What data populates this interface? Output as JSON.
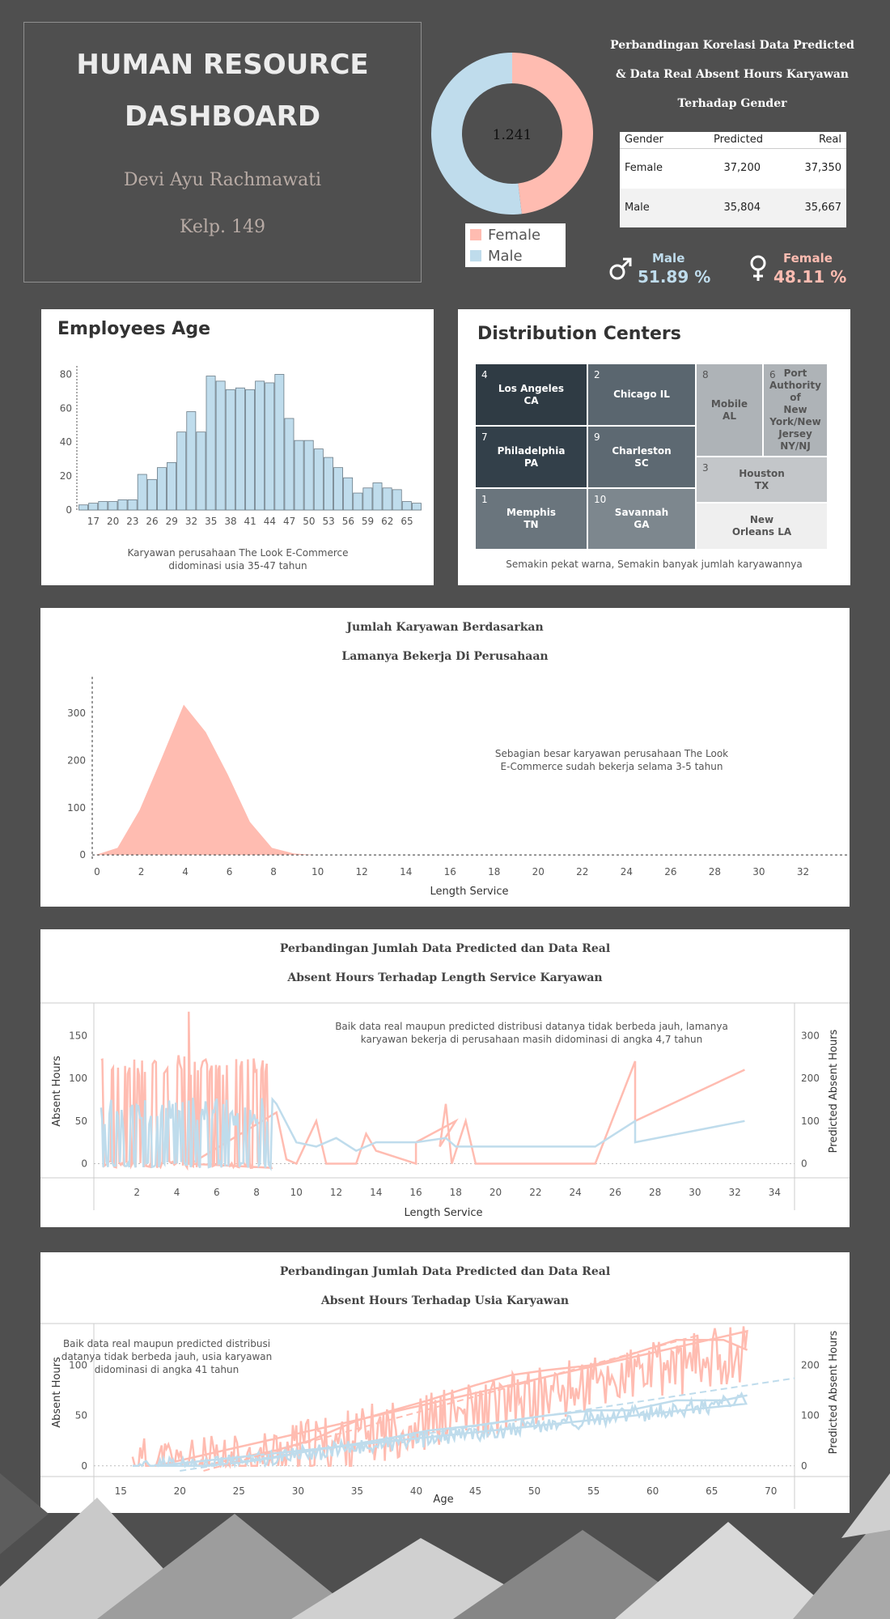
{
  "colors": {
    "background": "#4f4f4f",
    "female": "#ffbcb1",
    "male": "#bfdcec",
    "dark_tile": "#2f3b44"
  },
  "header": {
    "title_line1": "HUMAN RESOURCE",
    "title_line2": "DASHBOARD",
    "author": "Devi Ayu Rachmawati",
    "group": "Kelp. 149"
  },
  "donut": {
    "center_label": "1.241",
    "legend": [
      "Female",
      "Male"
    ]
  },
  "comparison": {
    "title_lines": [
      "Perbandingan Korelasi Data Predicted",
      "& Data Real Absent Hours Karyawan",
      "Terhadap Gender"
    ],
    "columns": [
      "Gender",
      "Predicted",
      "Real"
    ],
    "rows": [
      [
        "Female",
        "37,200",
        "37,350"
      ],
      [
        "Male",
        "35,804",
        "35,667"
      ]
    ]
  },
  "gender_stats": {
    "male_label": "Male",
    "male_pct": "51.89 %",
    "male_icon": "male-symbol-icon",
    "female_label": "Female",
    "female_pct": "48.11 %",
    "female_icon": "female-symbol-icon"
  },
  "chart_data": [
    {
      "id": "gender_donut",
      "type": "pie",
      "labels": [
        "Female",
        "Male"
      ],
      "values": [
        48.11,
        51.89
      ],
      "center_label": "1.241"
    },
    {
      "id": "employees_age",
      "type": "bar",
      "title": "Employees Age",
      "x_tick_labels": [
        "17",
        "20",
        "23",
        "26",
        "29",
        "32",
        "35",
        "38",
        "41",
        "44",
        "47",
        "50",
        "53",
        "56",
        "59",
        "62",
        "65"
      ],
      "x_start": 16,
      "x_step": 1.5,
      "values": [
        3,
        4,
        5,
        5,
        6,
        6,
        21,
        18,
        25,
        28,
        46,
        58,
        46,
        79,
        76,
        71,
        72,
        71,
        76,
        75,
        80,
        54,
        41,
        41,
        36,
        31,
        25,
        19,
        10,
        13,
        16,
        13,
        12,
        5,
        4
      ],
      "y_ticks": [
        "0",
        "20",
        "40",
        "60",
        "80"
      ],
      "ylim": [
        0,
        85
      ],
      "note_lines": [
        "Karyawan perusahaan The Look E-Commerce",
        "didominasi usia 35-47 tahun"
      ]
    },
    {
      "id": "distribution_centers",
      "type": "heatmap",
      "title": "Distribution Centers",
      "tiles": [
        {
          "rank": "4",
          "lines": [
            "Los Angeles",
            "CA"
          ]
        },
        {
          "rank": "2",
          "lines": [
            "Chicago IL"
          ]
        },
        {
          "rank": "8",
          "lines": [
            "Mobile",
            "AL"
          ]
        },
        {
          "rank": "6",
          "lines": [
            "Port",
            "Authority of",
            "New",
            "York/New",
            "Jersey",
            "NY/NJ"
          ]
        },
        {
          "rank": "7",
          "lines": [
            "Philadelphia",
            "PA"
          ]
        },
        {
          "rank": "9",
          "lines": [
            "Charleston",
            "SC"
          ]
        },
        {
          "rank": "3",
          "lines": [
            "Houston",
            "TX"
          ]
        },
        {
          "rank": "1",
          "lines": [
            "Memphis",
            "TN"
          ]
        },
        {
          "rank": "10",
          "lines": [
            "Savannah",
            "GA"
          ]
        },
        {
          "rank": "",
          "lines": [
            "New",
            "Orleans LA"
          ]
        }
      ],
      "note": "Semakin pekat warna, Semakin banyak jumlah karyawannya"
    },
    {
      "id": "length_service_area",
      "type": "area",
      "title_lines": [
        "Jumlah Karyawan Berdasarkan",
        "Lamanya Bekerja Di Perusahaan"
      ],
      "xlabel": "Length Service",
      "x": [
        0,
        1,
        2,
        3,
        4,
        5,
        6,
        7,
        8,
        9,
        10
      ],
      "values": [
        0,
        15,
        95,
        205,
        318,
        260,
        170,
        70,
        15,
        3,
        0
      ],
      "x_ticks": [
        "0",
        "2",
        "4",
        "6",
        "8",
        "10",
        "12",
        "14",
        "16",
        "18",
        "20",
        "22",
        "24",
        "26",
        "28",
        "30",
        "32"
      ],
      "y_ticks": [
        "0",
        "100",
        "200",
        "300"
      ],
      "xlim": [
        0,
        34
      ],
      "ylim": [
        -10,
        360
      ],
      "note_lines": [
        "Sebagian besar karyawan perusahaan The Look",
        "E-Commerce sudah bekerja selama 3-5 tahun"
      ]
    },
    {
      "id": "absent_vs_length_service",
      "type": "line",
      "title_lines": [
        "Perbandingan Jumlah Data Predicted dan Data Real",
        "Absent Hours Terhadap Length Service Karyawan"
      ],
      "xlabel": "Length Service",
      "ylabel": "Absent Hours",
      "y2label": "Predicted Absent Hours",
      "x_ticks": [
        "2",
        "4",
        "6",
        "8",
        "10",
        "12",
        "14",
        "16",
        "18",
        "20",
        "22",
        "24",
        "26",
        "28",
        "30",
        "32",
        "34"
      ],
      "y_ticks": [
        "0",
        "50",
        "100",
        "150"
      ],
      "y2_ticks": [
        "0",
        "100",
        "200",
        "300"
      ],
      "xlim": [
        0,
        35
      ],
      "ylim": [
        -10,
        175
      ],
      "note_lines": [
        "Baik data real maupun predicted distribusi datanya tidak berbeda jauh, lamanya",
        "karyawan bekerja di perusahaan masih didominasi di angka 4,7 tahun"
      ],
      "series": [
        {
          "name": "Absent Hours",
          "x": [
            9,
            9.5,
            10,
            11,
            11.5,
            12,
            13,
            13.5,
            14,
            16,
            16,
            18,
            17.2,
            17.5,
            17.8,
            18.5,
            19,
            20,
            25,
            27,
            27,
            32.5
          ],
          "values": [
            60,
            5,
            0,
            50,
            0,
            0,
            0,
            35,
            15,
            0,
            25,
            50,
            20,
            70,
            0,
            50,
            0,
            0,
            0,
            120,
            50,
            110
          ]
        },
        {
          "name": "Predicted Absent Hours",
          "x": [
            9,
            10,
            11,
            12,
            13,
            14,
            16,
            17.5,
            18,
            18.5,
            19,
            20,
            25,
            27,
            27,
            32.5
          ],
          "values": [
            70,
            25,
            20,
            30,
            15,
            25,
            25,
            30,
            20,
            20,
            20,
            20,
            20,
            50,
            25,
            50
          ]
        }
      ]
    },
    {
      "id": "absent_vs_age",
      "type": "line",
      "title_lines": [
        "Perbandingan Jumlah Data Predicted dan Data Real",
        "Absent Hours Terhadap Usia Karyawan"
      ],
      "xlabel": "Age",
      "ylabel": "Absent Hours",
      "y2label": "Predicted Absent Hours",
      "x_ticks": [
        "15",
        "20",
        "25",
        "30",
        "35",
        "40",
        "45",
        "50",
        "55",
        "60",
        "65",
        "70"
      ],
      "y_ticks": [
        "0",
        "50",
        "100"
      ],
      "y2_ticks": [
        "0",
        "100",
        "200"
      ],
      "xlim": [
        13,
        72
      ],
      "ylim": [
        -5,
        130
      ],
      "note_lines": [
        "Baik data real maupun predicted distribusi",
        "datanya tidak berbeda jauh, usia karyawan",
        "didominasi di angka 41 tahun"
      ],
      "series": [
        {
          "name": "Absent Hours",
          "x": [
            18,
            22,
            25,
            28,
            31,
            35,
            38,
            41,
            45,
            48,
            51,
            55,
            58,
            62,
            66,
            68
          ],
          "values": [
            0,
            0,
            8,
            15,
            25,
            45,
            55,
            65,
            80,
            90,
            95,
            100,
            110,
            125,
            125,
            115
          ]
        },
        {
          "name": "Predicted Absent Hours",
          "x": [
            18,
            22,
            25,
            28,
            31,
            35,
            38,
            41,
            45,
            48,
            51,
            55,
            58,
            62,
            66,
            68
          ],
          "values": [
            0,
            0,
            3,
            8,
            15,
            22,
            28,
            35,
            40,
            45,
            50,
            55,
            55,
            65,
            65,
            70
          ]
        }
      ]
    }
  ]
}
